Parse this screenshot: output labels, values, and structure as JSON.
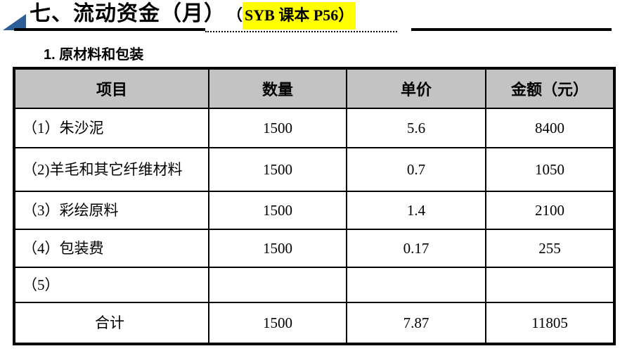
{
  "page": {
    "background": "#ffffff"
  },
  "title": {
    "text": "七、流动资金（月）",
    "paren": "（",
    "highlight_text": "SYB 课本 P56）",
    "highlight_color": "#ffff00",
    "bullet_color": "#2e5e96"
  },
  "section": {
    "label": "1. 原材料和包装"
  },
  "table": {
    "header_bg": "#c3c3c3",
    "columns": [
      "项目",
      "数量",
      "单价",
      "金额（元）"
    ],
    "rows": [
      {
        "item": "（1）朱沙泥",
        "qty": "1500",
        "price": "5.6",
        "amount": "8400"
      },
      {
        "item": "（2)羊毛和其它纤维材料",
        "qty": "1500",
        "price": "0.7",
        "amount": "1050"
      },
      {
        "item": "（3）彩绘原料",
        "qty": "1500",
        "price": "1.4",
        "amount": "2100"
      },
      {
        "item": "（4）包装费",
        "qty": "1500",
        "price": "0.17",
        "amount": "255"
      },
      {
        "item": "（5）",
        "qty": "",
        "price": "",
        "amount": ""
      }
    ],
    "total_row": {
      "item": "合计",
      "qty": "1500",
      "price": "7.87",
      "amount": "11805"
    }
  }
}
